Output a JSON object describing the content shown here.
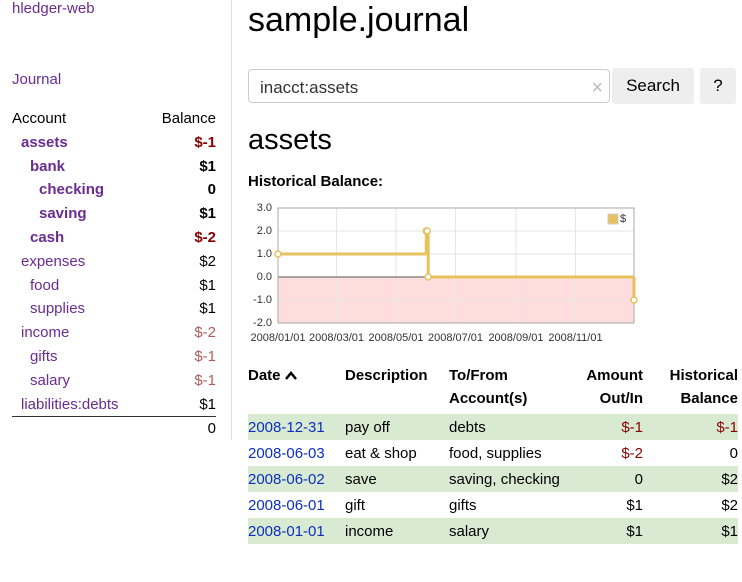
{
  "sidebar": {
    "app_link": "hledger-web",
    "journal_link": "Journal",
    "headers": [
      "Account",
      "Balance"
    ],
    "accounts": [
      {
        "name": "assets",
        "balance": "$-1"
      },
      {
        "name": "bank",
        "balance": "$1"
      },
      {
        "name": "checking",
        "balance": "0"
      },
      {
        "name": "saving",
        "balance": "$1"
      },
      {
        "name": "cash",
        "balance": "$-2"
      },
      {
        "name": "expenses",
        "balance": "$2"
      },
      {
        "name": "food",
        "balance": "$1"
      },
      {
        "name": "supplies",
        "balance": "$1"
      },
      {
        "name": "income",
        "balance": "$-2"
      },
      {
        "name": "gifts",
        "balance": "$-1"
      },
      {
        "name": "salary",
        "balance": "$-1"
      },
      {
        "name": "liabilities:debts",
        "balance": "$1"
      }
    ],
    "total": "0"
  },
  "main": {
    "title": "sample.journal",
    "search": {
      "query": "inacct:assets",
      "button": "Search",
      "help": "?"
    },
    "heading": "assets",
    "chart_title": "Historical Balance:",
    "chart": {
      "type": "line",
      "x": [
        "2008-01-01",
        "2008-06-01",
        "2008-06-02",
        "2008-06-03",
        "2008-12-31"
      ],
      "series": [
        {
          "name": "$",
          "color": "#e6c25c",
          "values": [
            1,
            2,
            2,
            0,
            -1
          ]
        }
      ],
      "xlim": [
        "2008-01-01",
        "2008-12-31"
      ],
      "xticks": [
        {
          "value": "2008-01-01",
          "label": "2008/01/01"
        },
        {
          "value": "2008-03-01",
          "label": "2008/03/01"
        },
        {
          "value": "2008-05-01",
          "label": "2008/05/01"
        },
        {
          "value": "2008-07-01",
          "label": "2008/07/01"
        },
        {
          "value": "2008-09-01",
          "label": "2008/09/01"
        },
        {
          "value": "2008-11-01",
          "label": "2008/11/01"
        }
      ],
      "ylim": [
        -2,
        3
      ],
      "yticks": [
        {
          "value": 3,
          "label": "3.0"
        },
        {
          "value": 2,
          "label": "2.0"
        },
        {
          "value": 1,
          "label": "1.0"
        },
        {
          "value": 0,
          "label": "0.0"
        },
        {
          "value": -1,
          "label": "-1.0"
        },
        {
          "value": -2,
          "label": "-2.0"
        }
      ],
      "grid": true,
      "legend": "top-right"
    },
    "table": {
      "headers": [
        "Date",
        "Description",
        "To/From Account(s)",
        "Amount Out/In",
        "Historical Balance"
      ],
      "rows": [
        [
          "2008-12-31",
          "pay off",
          "debts",
          "$-1",
          "$-1"
        ],
        [
          "2008-06-03",
          "eat & shop",
          "food, supplies",
          "$-2",
          "0"
        ],
        [
          "2008-06-02",
          "save",
          "saving, checking",
          "0",
          "$2"
        ],
        [
          "2008-06-01",
          "gift",
          "gifts",
          "$1",
          "$2"
        ],
        [
          "2008-01-01",
          "income",
          "salary",
          "$1",
          "$1"
        ]
      ]
    }
  }
}
